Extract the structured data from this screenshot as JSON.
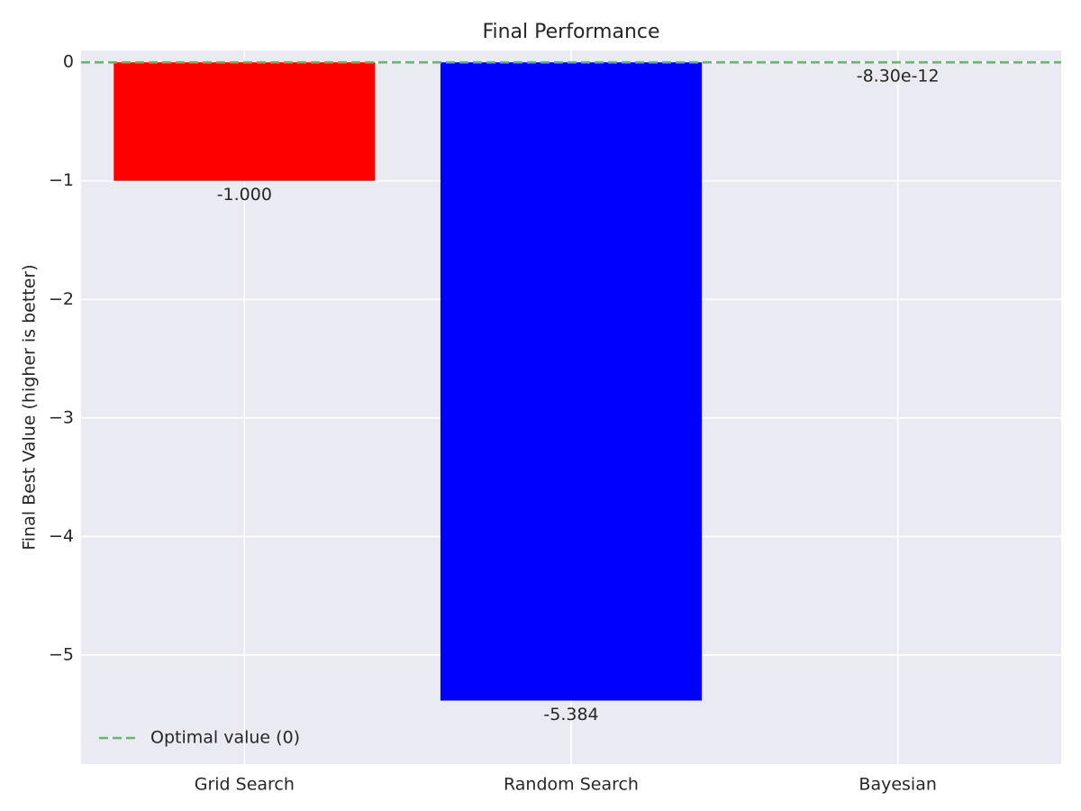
{
  "chart_data": {
    "type": "bar",
    "title": "Final Performance",
    "xlabel": "",
    "ylabel": "Final Best Value (higher is better)",
    "categories": [
      "Grid Search",
      "Random Search",
      "Bayesian"
    ],
    "values": [
      -1.0,
      -5.384,
      -8.3e-12
    ],
    "value_labels": [
      "-1.000",
      "-5.384",
      "-8.30e-12"
    ],
    "colors": [
      "#ff0000",
      "#0000ff",
      "#008000"
    ],
    "ylim": [
      -5.92,
      0.1
    ],
    "yticks": [
      0,
      -1,
      -2,
      -3,
      -4,
      -5
    ],
    "ytick_labels": [
      "0",
      "−1",
      "−2",
      "−3",
      "−4",
      "−5"
    ],
    "reference_line": {
      "value": 0,
      "color": "#6ab46e",
      "style": "dashed",
      "label": "Optimal value (0)"
    },
    "legend": {
      "placement": "lower-left",
      "entries": [
        "Optimal value (0)"
      ]
    },
    "grid": true,
    "background": "#eaeaf2"
  }
}
